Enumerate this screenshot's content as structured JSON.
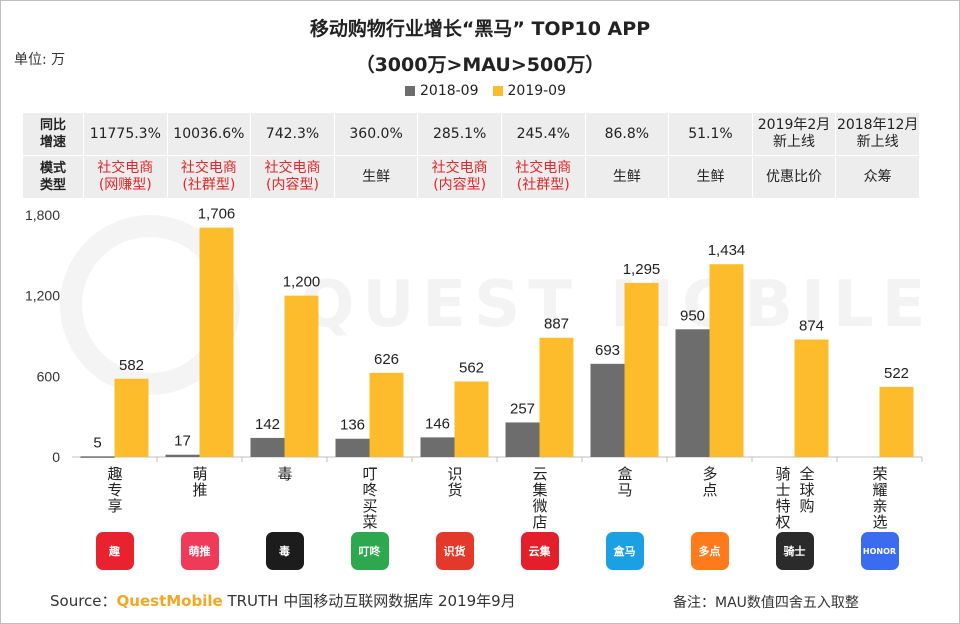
{
  "header": {
    "title_line1": "移动购物行业增长“黑马” TOP10 APP",
    "title_line2": "（3000万>MAU>500万）",
    "unit": "单位: 万"
  },
  "table": {
    "growth_header": "同比\n增速",
    "mode_header": "模式\n类型",
    "growth": [
      "11775.3%",
      "10036.6%",
      "742.3%",
      "360.0%",
      "285.1%",
      "245.4%",
      "86.8%",
      "51.1%",
      "2019年2月\n新上线",
      "2018年12月\n新上线"
    ],
    "mode": [
      "社交电商\n(网赚型)",
      "社交电商\n(社群型)",
      "社交电商\n(内容型)",
      "生鲜",
      "社交电商\n(内容型)",
      "社交电商\n(社群型)",
      "生鲜",
      "生鲜",
      "优惠比价",
      "众筹"
    ],
    "mode_red": [
      true,
      true,
      true,
      false,
      true,
      true,
      false,
      false,
      false,
      false
    ]
  },
  "chart_data": {
    "type": "bar",
    "categories": [
      "趣专享",
      "萌推",
      "毒",
      "叮咚买菜",
      "识货",
      "云集微店",
      "盒马",
      "多点",
      "骑士特权|全球购",
      "荣耀亲选"
    ],
    "series": [
      {
        "name": "2018-09",
        "color": "#6d6d6d",
        "values": [
          5,
          17,
          142,
          136,
          146,
          257,
          693,
          950,
          null,
          null
        ]
      },
      {
        "name": "2019-09",
        "color": "#fcbc2c",
        "values": [
          582,
          1706,
          1200,
          626,
          562,
          887,
          1295,
          1434,
          874,
          522
        ]
      }
    ],
    "ylim": [
      0,
      1800
    ],
    "yticks": [
      "0",
      "600",
      "1,200",
      "1,800"
    ],
    "ytick_values": [
      0,
      600,
      1200,
      1800
    ],
    "value_labels_2018": [
      "5",
      "17",
      "142",
      "136",
      "146",
      "257",
      "693",
      "950",
      "",
      ""
    ],
    "value_labels_2019": [
      "582",
      "1,706",
      "1,200",
      "626",
      "562",
      "887",
      "1,295",
      "1,434",
      "874",
      "522"
    ]
  },
  "app_icons": [
    {
      "name": "qu-zhuanxiang-icon",
      "text": "趣",
      "color": "#e8232f"
    },
    {
      "name": "mengtui-icon",
      "text": "萌推",
      "color": "#f03a5a"
    },
    {
      "name": "du-icon",
      "text": "毒",
      "color": "#1c1c1c"
    },
    {
      "name": "dingdong-icon",
      "text": "叮咚",
      "color": "#2ea84f"
    },
    {
      "name": "shihuo-icon",
      "text": "识货",
      "color": "#e4392a"
    },
    {
      "name": "yunji-icon",
      "text": "云集",
      "color": "#e41e2b"
    },
    {
      "name": "hema-icon",
      "text": "盒马",
      "color": "#1aa0e3"
    },
    {
      "name": "duodian-icon",
      "text": "多点",
      "color": "#ff7a1a"
    },
    {
      "name": "qishi-icon",
      "text": "骑士",
      "color": "#2b2b2b"
    },
    {
      "name": "honor-icon",
      "text": "HONOR",
      "color": "#3b6cf0"
    }
  ],
  "watermark": "QUEST MOBILE",
  "footer": {
    "source_prefix": "Source：",
    "source_brand": "QuestMobile",
    "source_rest": " TRUTH 中国移动互联网数据库 2019年9月",
    "note": "备注：MAU数值四舍五入取整"
  }
}
